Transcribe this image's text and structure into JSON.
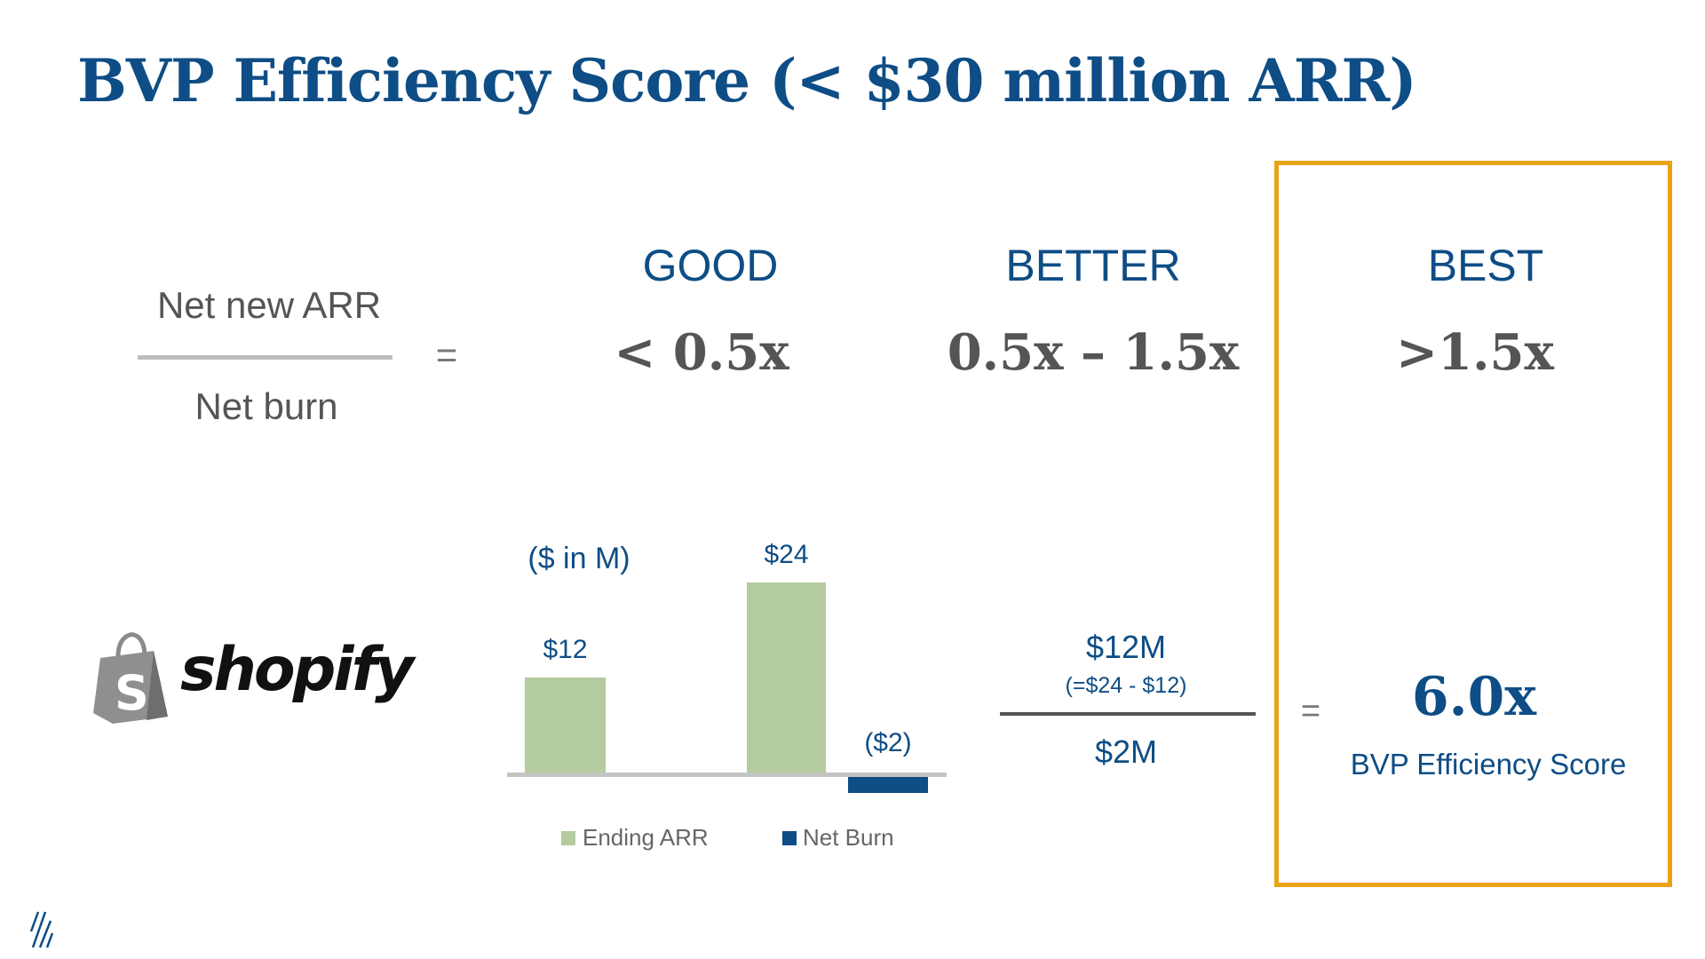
{
  "title": "BVP Efficiency Score (< $30 million ARR)",
  "formula": {
    "numerator": "Net new ARR",
    "denominator": "Net burn",
    "equals": "="
  },
  "tiers": [
    {
      "label": "GOOD",
      "value": "< 0.5x"
    },
    {
      "label": "BETTER",
      "value": "0.5x – 1.5x"
    },
    {
      "label": "BEST",
      "value": ">1.5x"
    }
  ],
  "example": {
    "company": "shopify",
    "calc_numerator": "$12M",
    "calc_note": "(=$24 - $12)",
    "calc_denominator": "$2M",
    "equals": "=",
    "score": "6.0x",
    "score_label": "BVP Efficiency Score"
  },
  "colors": {
    "accent": "#0e4d85",
    "highlight": "#e8a317",
    "arr": "#b3cb9f",
    "burn": "#0e4d85"
  },
  "chart_data": {
    "type": "bar",
    "unit_label": "($ in M)",
    "bars": [
      {
        "series": "Ending ARR",
        "value": 12,
        "label": "$12"
      },
      {
        "series": "Ending ARR",
        "value": 24,
        "label": "$24"
      },
      {
        "series": "Net Burn",
        "value": -2,
        "label": "($2)"
      }
    ],
    "legend": [
      "Ending ARR",
      "Net Burn"
    ]
  }
}
